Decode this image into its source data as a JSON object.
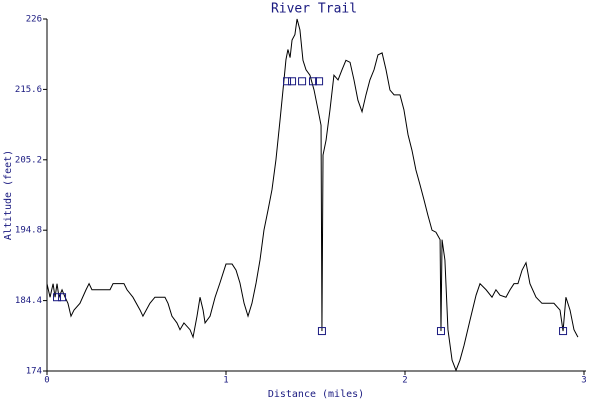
{
  "chart_data": {
    "type": "line",
    "title": "River Trail",
    "x_label": "Distance (miles)",
    "y_label": "Altitude (feet)",
    "xlim": [
      0,
      3
    ],
    "xticks": [
      0,
      1,
      2,
      3
    ],
    "ylim": [
      174,
      226
    ],
    "yticks": [
      174,
      184.4,
      194.8,
      205.2,
      215.6,
      226
    ],
    "color": "#000000",
    "x": [
      0,
      0.017,
      0.034,
      0.045,
      0.056,
      0.067,
      0.084,
      0.101,
      0.117,
      0.134,
      0.151,
      0.184,
      0.218,
      0.235,
      0.251,
      0.352,
      0.369,
      0.43,
      0.447,
      0.48,
      0.52,
      0.536,
      0.575,
      0.603,
      0.659,
      0.676,
      0.698,
      0.726,
      0.743,
      0.765,
      0.799,
      0.816,
      0.838,
      0.855,
      0.872,
      0.883,
      0.911,
      0.939,
      0.966,
      1.0,
      1.034,
      1.056,
      1.078,
      1.101,
      1.123,
      1.145,
      1.168,
      1.19,
      1.212,
      1.235,
      1.257,
      1.279,
      1.302,
      1.324,
      1.335,
      1.346,
      1.358,
      1.369,
      1.385,
      1.397,
      1.413,
      1.43,
      1.447,
      1.469,
      1.492,
      1.514,
      1.531,
      1.536,
      1.542,
      1.559,
      1.581,
      1.603,
      1.626,
      1.648,
      1.67,
      1.693,
      1.715,
      1.737,
      1.76,
      1.782,
      1.804,
      1.827,
      1.849,
      1.872,
      1.894,
      1.916,
      1.939,
      1.972,
      1.994,
      2.017,
      2.039,
      2.061,
      2.084,
      2.106,
      2.128,
      2.151,
      2.173,
      2.196,
      2.201,
      2.207,
      2.223,
      2.24,
      2.263,
      2.285,
      2.307,
      2.33,
      2.363,
      2.397,
      2.419,
      2.453,
      2.486,
      2.508,
      2.531,
      2.564,
      2.587,
      2.609,
      2.631,
      2.654,
      2.676,
      2.698,
      2.732,
      2.765,
      2.832,
      2.866,
      2.883,
      2.899,
      2.922,
      2.944,
      2.966
    ],
    "values": [
      186.9,
      184.9,
      186.9,
      184.9,
      186.9,
      184.9,
      186.0,
      184.9,
      184.0,
      182.1,
      183.0,
      184.0,
      186.0,
      186.9,
      186.0,
      186.0,
      186.9,
      186.9,
      186.0,
      184.9,
      183.0,
      182.1,
      184.0,
      184.9,
      184.9,
      184.0,
      182.1,
      181.1,
      180.1,
      181.1,
      180.1,
      179.0,
      182.1,
      184.9,
      183.0,
      181.1,
      182.1,
      184.9,
      187.0,
      189.8,
      189.8,
      188.9,
      187.0,
      184.0,
      182.1,
      184.0,
      187.0,
      190.4,
      194.8,
      197.8,
      200.8,
      205.2,
      211.1,
      217.0,
      220.0,
      221.5,
      220.3,
      222.9,
      223.7,
      226,
      224.4,
      219.9,
      218.5,
      217.7,
      215.5,
      212.6,
      210.3,
      179.9,
      205.9,
      208.1,
      212.6,
      217.7,
      217.0,
      218.5,
      219.9,
      219.6,
      217.0,
      214.0,
      212.3,
      214.8,
      217.0,
      218.5,
      220.7,
      221.0,
      218.5,
      215.5,
      214.8,
      214.8,
      212.6,
      208.9,
      206.6,
      203.7,
      201.5,
      199.3,
      197.0,
      194.8,
      194.5,
      193.4,
      179.9,
      193.4,
      190.4,
      180.1,
      175.6,
      174.1,
      175.6,
      177.8,
      181.5,
      185.2,
      186.9,
      186.0,
      184.9,
      186.0,
      185.2,
      184.9,
      186.0,
      186.9,
      186.9,
      188.9,
      190.0,
      186.9,
      184.9,
      184.0,
      184.0,
      183.0,
      179.9,
      184.9,
      183.0,
      180.1,
      179.0
    ],
    "markers": {
      "color": "#1a1a80",
      "x": [
        0.056,
        0.084,
        1.341,
        1.369,
        1.425,
        1.486,
        1.52,
        1.536,
        2.201,
        2.883
      ],
      "values": [
        184.9,
        184.9,
        216.8,
        216.8,
        216.8,
        216.8,
        216.8,
        179.9,
        179.9,
        179.9
      ]
    }
  }
}
